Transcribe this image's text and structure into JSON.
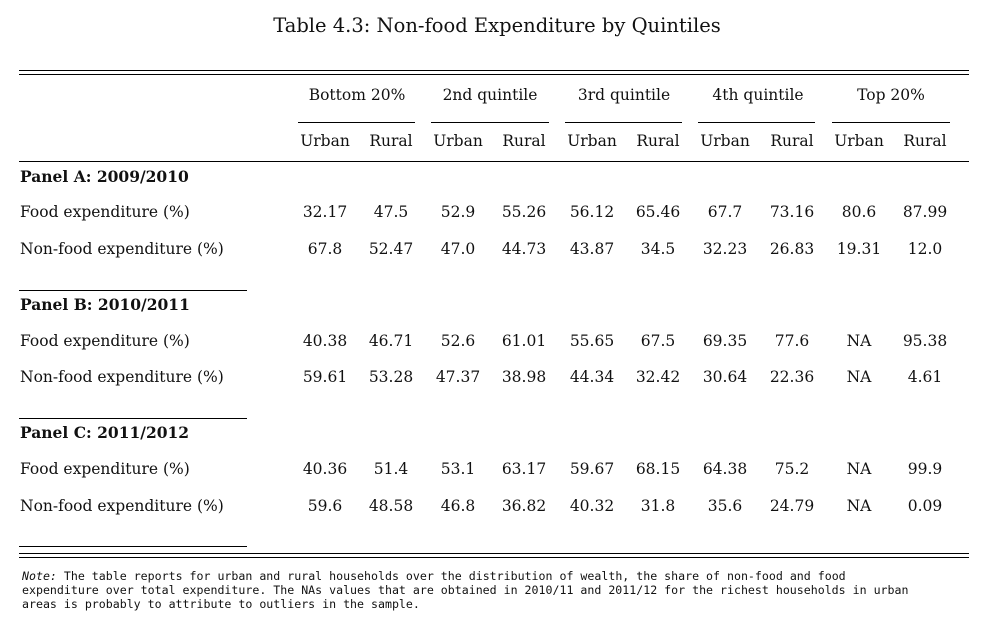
{
  "table": {
    "caption": "Table 4.3: Non-food Expenditure by Quintiles",
    "quintiles": [
      "Bottom 20%",
      "2nd quintile",
      "3rd quintile",
      "4th quintile",
      "Top 20%"
    ],
    "areas": [
      "Urban",
      "Rural"
    ],
    "panels": [
      {
        "title": "Panel A: 2009/2010",
        "rows": [
          {
            "label": "Food expenditure (%)",
            "values": [
              "32.17",
              "47.5",
              "52.9",
              "55.26",
              "56.12",
              "65.46",
              "67.7",
              "73.16",
              "80.6",
              "87.99"
            ]
          },
          {
            "label": "Non-food expenditure (%)",
            "values": [
              "67.8",
              "52.47",
              "47.0",
              "44.73",
              "43.87",
              "34.5",
              "32.23",
              "26.83",
              "19.31",
              "12.0"
            ]
          }
        ]
      },
      {
        "title": "Panel B: 2010/2011",
        "rows": [
          {
            "label": "Food expenditure (%)",
            "values": [
              "40.38",
              "46.71",
              "52.6",
              "61.01",
              "55.65",
              "67.5",
              "69.35",
              "77.6",
              "NA",
              "95.38"
            ]
          },
          {
            "label": "Non-food expenditure (%)",
            "values": [
              "59.61",
              "53.28",
              "47.37",
              "38.98",
              "44.34",
              "32.42",
              "30.64",
              "22.36",
              "NA",
              "4.61"
            ]
          }
        ]
      },
      {
        "title": "Panel C: 2011/2012",
        "rows": [
          {
            "label": "Food expenditure (%)",
            "values": [
              "40.36",
              "51.4",
              "53.1",
              "63.17",
              "59.67",
              "68.15",
              "64.38",
              "75.2",
              "NA",
              "99.9"
            ]
          },
          {
            "label": "Non-food expenditure (%)",
            "values": [
              "59.6",
              "48.58",
              "46.8",
              "36.82",
              "40.32",
              "31.8",
              "35.6",
              "24.79",
              "NA",
              "0.09"
            ]
          }
        ]
      }
    ],
    "note_label": "Note:",
    "note_text": "The table reports for urban and rural households over the distribution of wealth, the share of non-food and food expenditure over total expenditure. The NAs values that are obtained in 2010/11 and 2011/12 for the richest households in urban areas is probably to attribute to outliers in the sample."
  }
}
